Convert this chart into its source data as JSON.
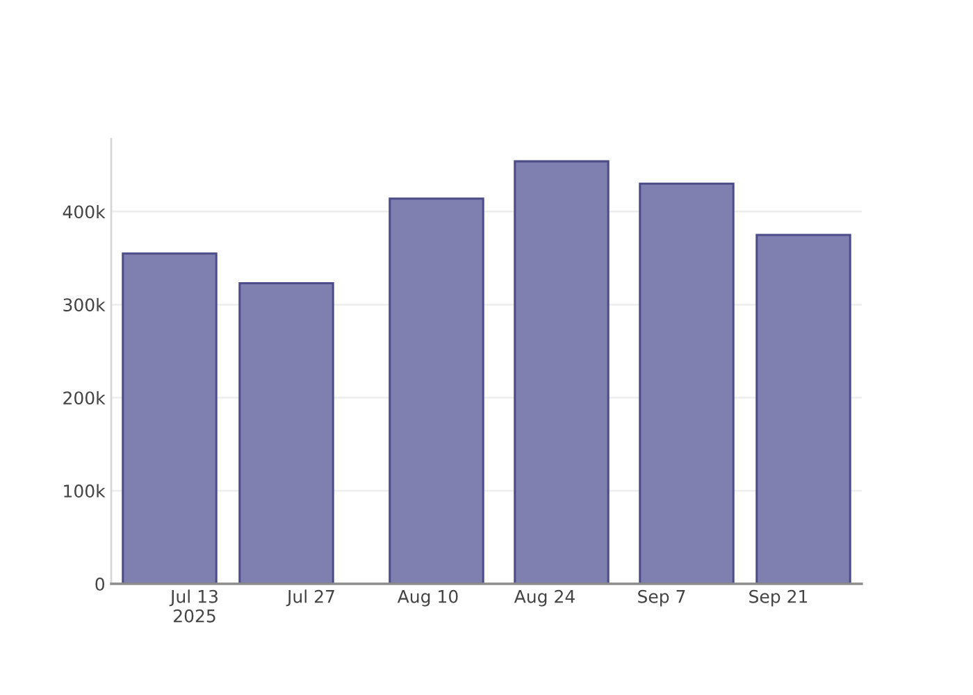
{
  "chart_data": {
    "type": "bar",
    "x": [
      "2025-07-10",
      "2025-07-24",
      "2025-08-11",
      "2025-08-26",
      "2025-09-10",
      "2025-09-24"
    ],
    "values": [
      355000,
      323000,
      414000,
      454000,
      430000,
      375000
    ],
    "color": "#7f7fb0",
    "xlim": [
      "2025-07-03",
      "2025-10-01"
    ],
    "xticks": [
      {
        "value": "2025-07-13",
        "label": "Jul 13\n2025"
      },
      {
        "value": "2025-07-27",
        "label": "Jul 27"
      },
      {
        "value": "2025-08-10",
        "label": "Aug 10"
      },
      {
        "value": "2025-08-24",
        "label": "Aug 24"
      },
      {
        "value": "2025-09-07",
        "label": "Sep 7"
      },
      {
        "value": "2025-09-21",
        "label": "Sep 21"
      }
    ],
    "ylim": [
      0,
      478000
    ],
    "yticks": [
      0,
      {
        "value": 100000,
        "label": "100k"
      },
      {
        "value": 200000,
        "label": "200k"
      },
      {
        "value": 300000,
        "label": "300k"
      },
      {
        "value": 400000,
        "label": "400k"
      }
    ],
    "grid": "y"
  }
}
